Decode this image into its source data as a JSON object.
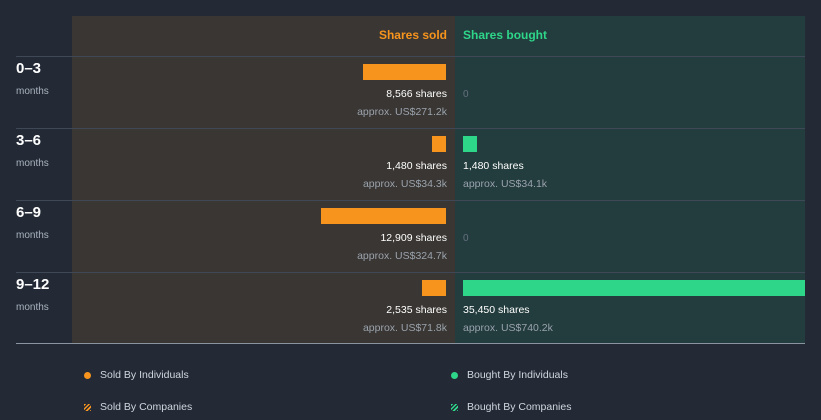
{
  "chart_data": {
    "type": "bar",
    "columns": {
      "sold": "Shares sold",
      "bought": "Shares bought"
    },
    "categories": [
      {
        "period": "0–3",
        "unit": "months"
      },
      {
        "period": "3–6",
        "unit": "months"
      },
      {
        "period": "6–9",
        "unit": "months"
      },
      {
        "period": "9–12",
        "unit": "months"
      }
    ],
    "series": [
      {
        "name": "Shares sold",
        "values": [
          8566,
          1480,
          12909,
          2535
        ],
        "value_labels": [
          "8,566 shares",
          "1,480 shares",
          "12,909 shares",
          "2,535 shares"
        ],
        "approx_labels": [
          "approx. US$271.2k",
          "approx. US$34.3k",
          "approx. US$324.7k",
          "approx. US$71.8k"
        ],
        "color": "#f7941d"
      },
      {
        "name": "Shares bought",
        "values": [
          0,
          1480,
          0,
          35450
        ],
        "value_labels": [
          "0",
          "1,480 shares",
          "0",
          "35,450 shares"
        ],
        "approx_labels": [
          "",
          "approx. US$34.1k",
          "",
          "approx. US$740.2k"
        ],
        "color": "#2ed68a"
      }
    ],
    "xmax": 35450
  },
  "legend": [
    {
      "label": "Sold By Individuals",
      "color": "#f7941d",
      "style": "dot"
    },
    {
      "label": "Bought By Individuals",
      "color": "#2ed68a",
      "style": "dot"
    },
    {
      "label": "Sold By Companies",
      "color": "#f7941d",
      "style": "hatch"
    },
    {
      "label": "Bought By Companies",
      "color": "#2ed68a",
      "style": "hatch"
    }
  ],
  "colors": {
    "background": "#232a36",
    "sold_panel": "#3a3633",
    "bought_panel": "#233c3d"
  }
}
